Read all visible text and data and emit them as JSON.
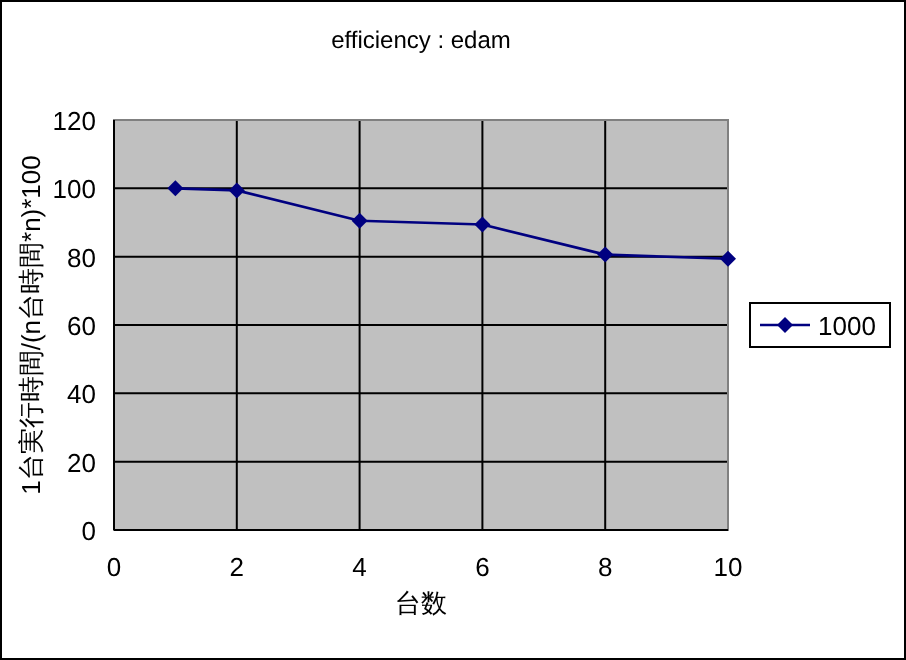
{
  "chart_data": {
    "type": "line",
    "title": "efficiency : edam",
    "xlabel": "台数",
    "ylabel": "1台実行時間/(n台時間*n)*100",
    "x": [
      1,
      2,
      4,
      6,
      8,
      10
    ],
    "series": [
      {
        "name": "1000",
        "color": "#000080",
        "values": [
          100,
          99.4,
          90.5,
          89.4,
          80.6,
          79.4
        ]
      }
    ],
    "xlim": [
      0,
      10
    ],
    "ylim": [
      0,
      120
    ],
    "xticks": [
      0,
      2,
      4,
      6,
      8,
      10
    ],
    "yticks": [
      0,
      20,
      40,
      60,
      80,
      100,
      120
    ],
    "grid": true,
    "legend": "right",
    "marker": "diamond",
    "line_style": "solid"
  }
}
